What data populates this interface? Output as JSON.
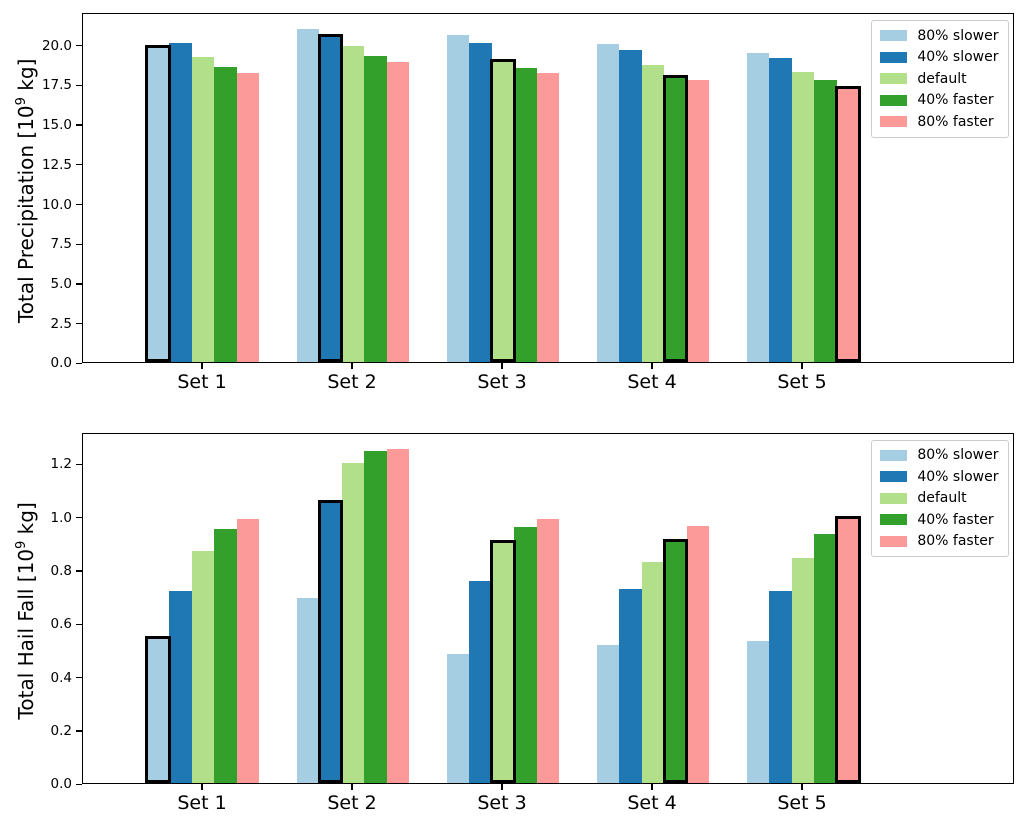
{
  "chart_data": [
    {
      "type": "bar",
      "title": "",
      "ylabel": "Total Precipitation [10^9 kg]",
      "ylabel_prefix": "Total Precipitation [10",
      "ylabel_sup": "9",
      "ylabel_suffix": " kg]",
      "categories": [
        "Set 1",
        "Set 2",
        "Set 3",
        "Set 4",
        "Set 5"
      ],
      "series": [
        {
          "name": "80% slower",
          "color": "#a6cee3",
          "values": [
            19.9,
            21.0,
            20.6,
            20.05,
            19.45
          ]
        },
        {
          "name": "40% slower",
          "color": "#1f78b4",
          "values": [
            20.1,
            20.55,
            20.1,
            19.65,
            19.15
          ]
        },
        {
          "name": "default",
          "color": "#b2df8a",
          "values": [
            19.25,
            19.95,
            19.0,
            18.7,
            18.3
          ]
        },
        {
          "name": "40% faster",
          "color": "#33a02c",
          "values": [
            18.6,
            19.3,
            18.55,
            18.0,
            17.75
          ]
        },
        {
          "name": "80% faster",
          "color": "#fb9a99",
          "values": [
            18.2,
            18.9,
            18.2,
            17.8,
            17.3
          ]
        }
      ],
      "highlighted_series_per_category": [
        0,
        1,
        2,
        3,
        4
      ],
      "highlight_edge_color": "#000000",
      "ylim": [
        0,
        22.06
      ],
      "yticks": [
        "0.0",
        "2.5",
        "5.0",
        "7.5",
        "10.0",
        "12.5",
        "15.0",
        "17.5",
        "20.0"
      ],
      "grid": false,
      "legend_position": "upper right"
    },
    {
      "type": "bar",
      "title": "",
      "ylabel": "Total Hail Fall [10^9 kg]",
      "ylabel_prefix": "Total Hail Fall [10",
      "ylabel_sup": "9",
      "ylabel_suffix": " kg]",
      "categories": [
        "Set 1",
        "Set 2",
        "Set 3",
        "Set 4",
        "Set 5"
      ],
      "series": [
        {
          "name": "80% slower",
          "color": "#a6cee3",
          "values": [
            0.545,
            0.695,
            0.485,
            0.52,
            0.535
          ]
        },
        {
          "name": "40% slower",
          "color": "#1f78b4",
          "values": [
            0.72,
            1.055,
            0.76,
            0.73,
            0.72
          ]
        },
        {
          "name": "default",
          "color": "#b2df8a",
          "values": [
            0.87,
            1.2,
            0.905,
            0.83,
            0.845
          ]
        },
        {
          "name": "40% faster",
          "color": "#33a02c",
          "values": [
            0.955,
            1.245,
            0.96,
            0.91,
            0.935
          ]
        },
        {
          "name": "80% faster",
          "color": "#fb9a99",
          "values": [
            0.99,
            1.255,
            0.99,
            0.965,
            0.995
          ]
        }
      ],
      "highlighted_series_per_category": [
        0,
        1,
        2,
        3,
        4
      ],
      "highlight_edge_color": "#000000",
      "ylim": [
        0,
        1.318
      ],
      "yticks": [
        "0.0",
        "0.2",
        "0.4",
        "0.6",
        "0.8",
        "1.0",
        "1.2"
      ],
      "grid": false,
      "legend_position": "upper right"
    }
  ]
}
